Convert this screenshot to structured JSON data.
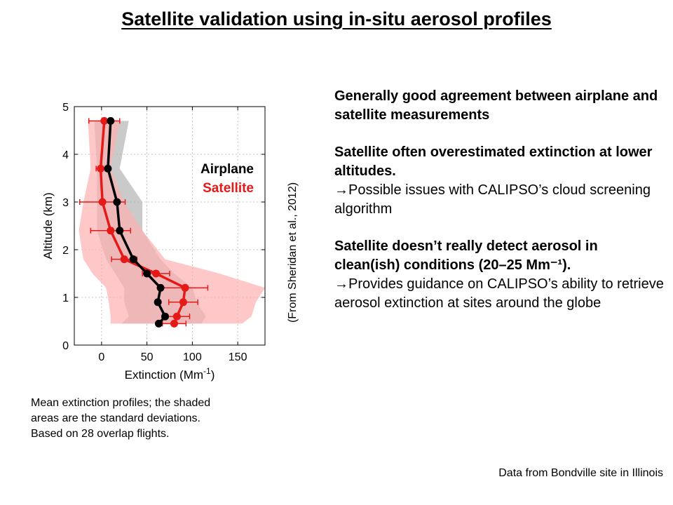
{
  "slide": {
    "title": "Satellite validation using in-situ aerosol profiles",
    "citation": "(From Sheridan et al., 2012)",
    "caption": [
      "Mean extinction profiles; the shaded",
      "areas are the standard deviations.",
      "Based on 28 overlap flights."
    ],
    "source_note": "Data from Bondville site in Illinois",
    "findings": {
      "p1_bold": "Generally good agreement between airplane and satellite measurements",
      "p2_bold": "Satellite often overestimated extinction at lower altitudes.",
      "p2_arrow": "→",
      "p2_text": "Possible issues with CALIPSO’s cloud screening algorithm",
      "p3_bold": "Satellite doesn’t really detect aerosol in clean(ish) conditions (20–25 Mm⁻¹).",
      "p3_arrow": "→",
      "p3_text": "Provides guidance on CALIPSO’s ability to retrieve aerosol extinction at sites around the globe"
    }
  },
  "chart_data": {
    "type": "line",
    "xlabel": "Extinction (Mm",
    "xlabel_sup": "-1",
    "xlabel_end": ")",
    "ylabel": "Altitude (km)",
    "xlim": [
      -30,
      180
    ],
    "ylim": [
      0,
      5
    ],
    "xticks": [
      0,
      50,
      100,
      150
    ],
    "yticks": [
      0,
      1,
      2,
      3,
      4,
      5
    ],
    "grid": true,
    "legend_position": "right",
    "series": [
      {
        "name": "Airplane",
        "color": "#000000",
        "band_color": "#b4b4b4",
        "points": [
          {
            "x": 63,
            "y": 0.45
          },
          {
            "x": 70,
            "y": 0.6
          },
          {
            "x": 62,
            "y": 0.9
          },
          {
            "x": 65,
            "y": 1.2
          },
          {
            "x": 50,
            "y": 1.5
          },
          {
            "x": 35,
            "y": 1.8
          },
          {
            "x": 20,
            "y": 2.4
          },
          {
            "x": 17,
            "y": 3.0
          },
          {
            "x": 7,
            "y": 3.7
          },
          {
            "x": 10,
            "y": 4.7
          }
        ],
        "sd_lower": [
          22,
          30,
          25,
          25,
          15,
          5,
          -5,
          -5,
          -5,
          -8
        ],
        "sd_upper": [
          110,
          115,
          105,
          100,
          80,
          65,
          45,
          45,
          20,
          30
        ]
      },
      {
        "name": "Satellite",
        "color": "#e61919",
        "band_color": "#ffb0b0",
        "points": [
          {
            "x": 80,
            "y": 0.45
          },
          {
            "x": 83,
            "y": 0.6
          },
          {
            "x": 90,
            "y": 0.9
          },
          {
            "x": 92,
            "y": 1.2
          },
          {
            "x": 60,
            "y": 1.5
          },
          {
            "x": 25,
            "y": 1.8
          },
          {
            "x": 10,
            "y": 2.4
          },
          {
            "x": 1,
            "y": 3.0
          },
          {
            "x": -1,
            "y": 3.7
          },
          {
            "x": 3,
            "y": 4.7
          }
        ],
        "xerr": [
          13,
          14,
          16,
          25,
          15,
          14,
          22,
          25,
          5,
          17
        ],
        "sd_lower": [
          10,
          10,
          8,
          5,
          -10,
          -20,
          -25,
          -20,
          -12,
          -15
        ],
        "sd_upper": [
          155,
          165,
          170,
          180,
          130,
          70,
          45,
          25,
          10,
          20
        ]
      }
    ]
  }
}
